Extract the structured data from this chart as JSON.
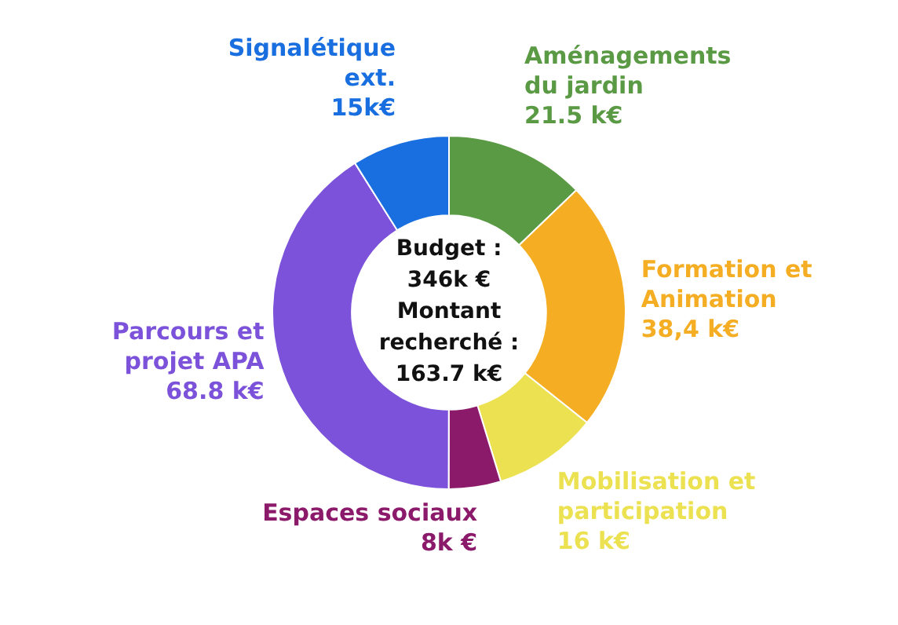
{
  "chart_data": {
    "type": "donut",
    "categories": [
      "Aménagements du jardin",
      "Formation et Animation",
      "Mobilisation et participation",
      "Espaces sociaux",
      "Parcours et projet APA",
      "Signalétique ext."
    ],
    "values": [
      21.5,
      38.4,
      16,
      8,
      68.8,
      15
    ],
    "value_labels": [
      "21.5 k€",
      "38,4 k€",
      "16 k€",
      "8k €",
      "68.8 k€",
      "15k€"
    ],
    "colors": [
      "#5b9a44",
      "#f5ae23",
      "#ece150",
      "#8b1a6b",
      "#7b52d9",
      "#1a6fe0"
    ],
    "annotations": [
      "Budget :",
      "346k €",
      "Montant recherché :",
      "163.7 k€"
    ]
  }
}
